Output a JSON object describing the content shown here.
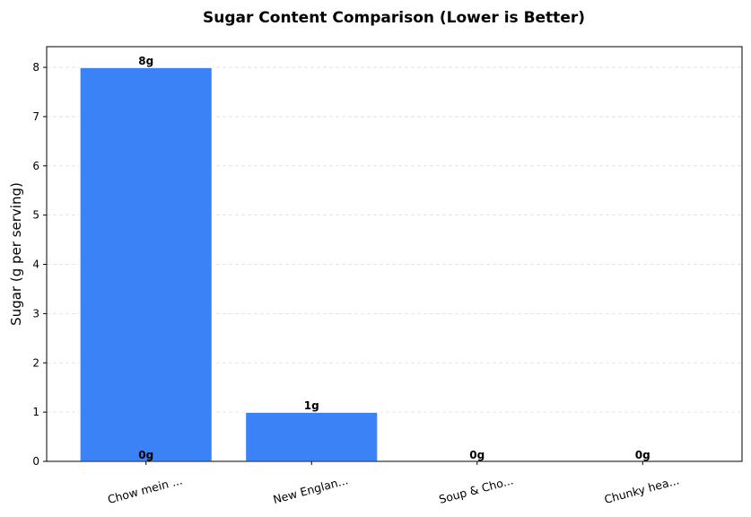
{
  "chart_data": {
    "type": "bar",
    "title": "Sugar Content Comparison (Lower is Better)",
    "xlabel": "",
    "ylabel": "Sugar (g per serving)",
    "categories": [
      "Chow mein ...",
      "New Englan...",
      "Soup & Cho...",
      "Chunky hea..."
    ],
    "values": [
      8,
      1,
      0,
      0
    ],
    "data_labels": [
      "8g",
      "1g",
      "0g",
      "0g"
    ],
    "extra_labels": [
      {
        "category_index": 0,
        "value": 0,
        "text": "0g"
      }
    ],
    "ylim": [
      0,
      8.42
    ],
    "xlim": [
      -0.6,
      3.6
    ],
    "yticks": [
      0,
      1,
      2,
      3,
      4,
      5,
      6,
      7,
      8
    ],
    "grid": "y dashed",
    "bar_color": "#3b82f6",
    "x_tick_rotation": -15
  }
}
